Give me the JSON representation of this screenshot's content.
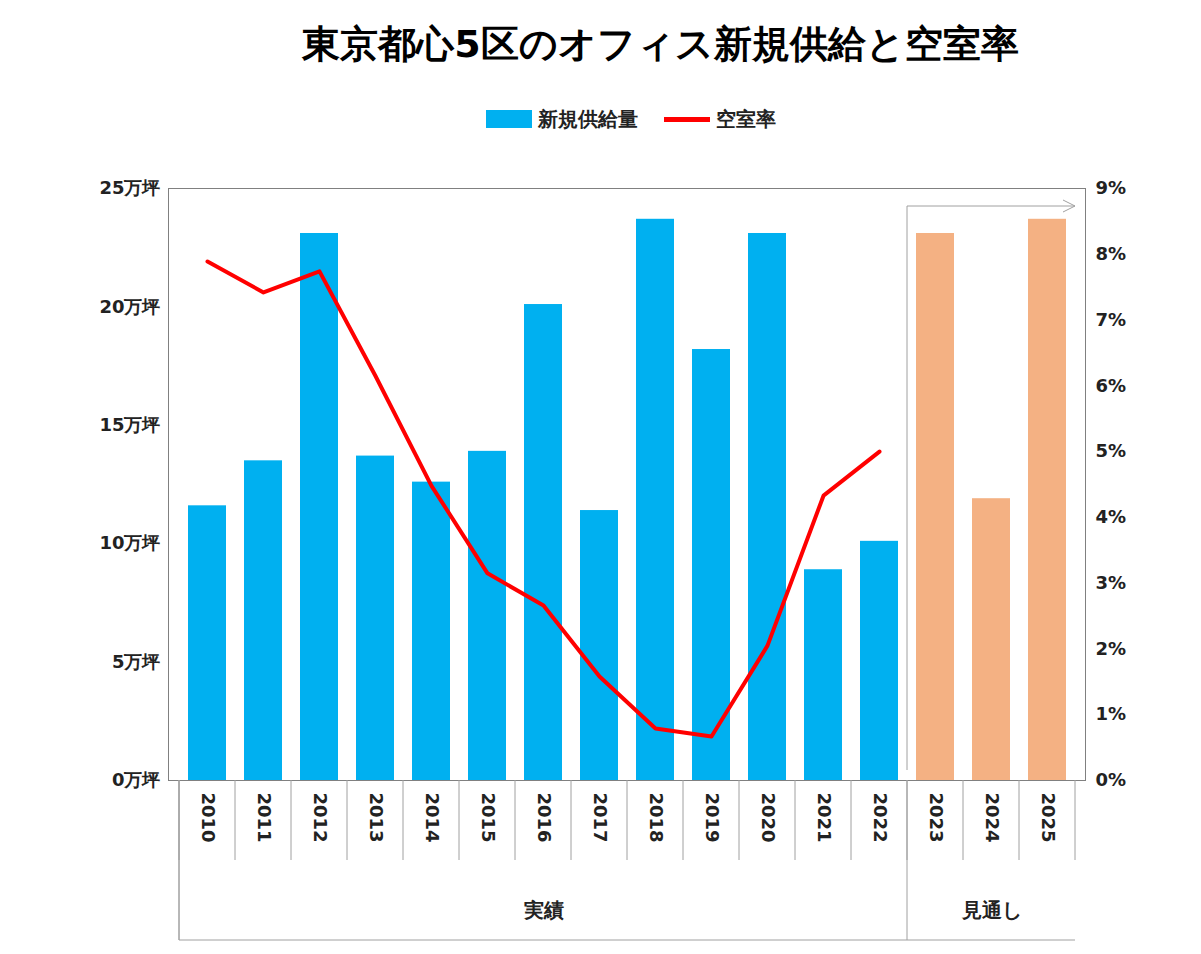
{
  "chart_data": {
    "type": "bar",
    "title": "東京都心5区のオフィス新規供給と空室率",
    "categories": [
      "2010",
      "2011",
      "2012",
      "2013",
      "2014",
      "2015",
      "2016",
      "2017",
      "2018",
      "2019",
      "2020",
      "2021",
      "2022",
      "2023",
      "2024",
      "2025"
    ],
    "series": [
      {
        "name": "新規供給量",
        "type": "bar",
        "color": "#00b0f0",
        "colors": [
          "#00b0f0",
          "#00b0f0",
          "#00b0f0",
          "#00b0f0",
          "#00b0f0",
          "#00b0f0",
          "#00b0f0",
          "#00b0f0",
          "#00b0f0",
          "#00b0f0",
          "#00b0f0",
          "#00b0f0",
          "#00b0f0",
          "#f4b183",
          "#f4b183",
          "#f4b183"
        ],
        "values": [
          11.6,
          13.5,
          23.1,
          13.7,
          12.6,
          13.9,
          20.1,
          11.4,
          23.7,
          18.2,
          23.1,
          8.9,
          10.1,
          23.1,
          11.9,
          23.7
        ]
      },
      {
        "name": "空室率",
        "type": "line",
        "axis": "y2",
        "color": "#ff0000",
        "values": [
          7.89,
          7.42,
          7.74,
          6.15,
          4.48,
          3.15,
          2.66,
          1.58,
          0.79,
          0.67,
          2.05,
          4.33,
          5.0,
          null,
          null,
          null
        ]
      }
    ],
    "ylim": [
      0,
      25
    ],
    "yticks": [
      {
        "value": 0,
        "label": "0万坪"
      },
      {
        "value": 5,
        "label": "5万坪"
      },
      {
        "value": 10,
        "label": "10万坪"
      },
      {
        "value": 15,
        "label": "15万坪"
      },
      {
        "value": 20,
        "label": "20万坪"
      },
      {
        "value": 25,
        "label": "25万坪"
      }
    ],
    "y2lim": [
      0,
      9
    ],
    "y2ticks": [
      {
        "value": 0,
        "label": "0%"
      },
      {
        "value": 1,
        "label": "1%"
      },
      {
        "value": 2,
        "label": "2%"
      },
      {
        "value": 3,
        "label": "3%"
      },
      {
        "value": 4,
        "label": "4%"
      },
      {
        "value": 5,
        "label": "5%"
      },
      {
        "value": 6,
        "label": "6%"
      },
      {
        "value": 7,
        "label": "7%"
      },
      {
        "value": 8,
        "label": "8%"
      },
      {
        "value": 9,
        "label": "9%"
      }
    ],
    "x_groups": [
      {
        "label": "実績",
        "from": "2010",
        "to": "2022"
      },
      {
        "label": "見通し",
        "from": "2023",
        "to": "2025"
      }
    ],
    "grid": false,
    "legend": "top"
  }
}
